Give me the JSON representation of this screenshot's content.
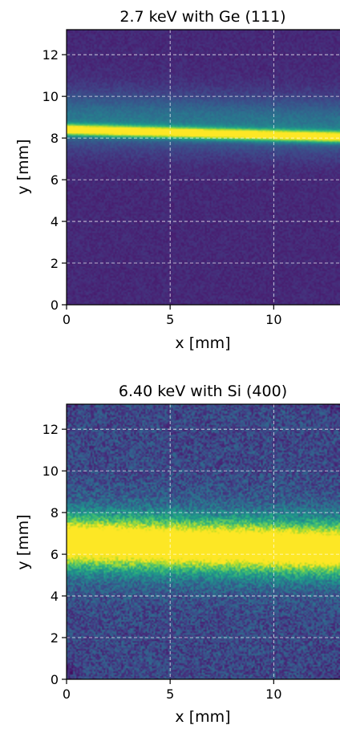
{
  "chart_data": [
    {
      "type": "heatmap",
      "title": "2.7 keV with Ge (111)",
      "xlabel": "x [mm]",
      "ylabel": "y [mm]",
      "xlim": [
        0,
        13.2
      ],
      "ylim": [
        0,
        13.2
      ],
      "xticks": [
        0,
        5,
        10
      ],
      "yticks": [
        0,
        2,
        4,
        6,
        8,
        10,
        12
      ],
      "grid": true,
      "colormap": "viridis",
      "band": {
        "center_y_at_x0": 8.4,
        "center_y_at_xmax": 8.05,
        "peak_intensity": 0.95,
        "core_width": 0.18,
        "halo_width": 0.9,
        "halo_intensity": 0.28,
        "halo_offset_y": 0.5,
        "background_intensity": 0.12,
        "noise": 0.04
      }
    },
    {
      "type": "heatmap",
      "title": "6.40 keV with Si (400)",
      "xlabel": "x [mm]",
      "ylabel": "y [mm]",
      "xlim": [
        0,
        13.2
      ],
      "ylim": [
        0,
        13.2
      ],
      "xticks": [
        0,
        5,
        10
      ],
      "yticks": [
        0,
        2,
        4,
        6,
        8,
        10,
        12
      ],
      "grid": true,
      "colormap": "viridis",
      "band": {
        "center_y_at_x0": 6.6,
        "center_y_at_xmax": 6.25,
        "peak_intensity": 0.85,
        "core_width": 0.75,
        "halo_width": 1.3,
        "halo_intensity": 0.3,
        "halo_offset_y": 0.0,
        "background_intensity": 0.22,
        "noise": 0.14
      }
    }
  ]
}
